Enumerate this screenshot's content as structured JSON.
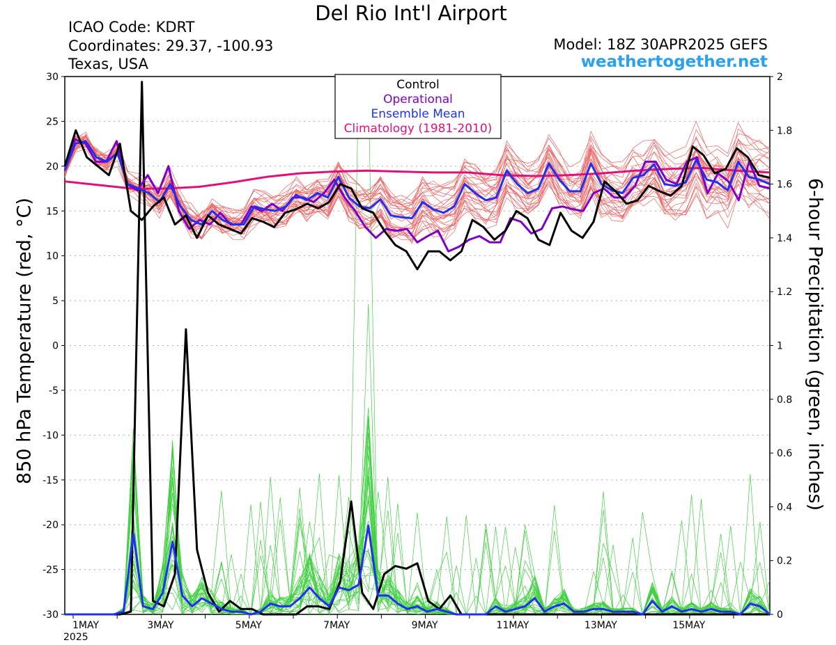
{
  "header": {
    "title": "Del Rio Int'l Airport",
    "icao": "ICAO Code: KDRT",
    "coordinates": "Coordinates: 29.37, -100.93",
    "location": "Texas, USA",
    "model": "Model: 18Z 30APR2025 GEFS",
    "brand": "weathertogether.net"
  },
  "colors": {
    "control": "#000000",
    "operational": "#8000c8",
    "ensemble_mean": "#2030f0",
    "climatology": "#e0107a",
    "members_temp": "#f06060",
    "members_precip": "#40d040",
    "brand": "#2aa0f0"
  },
  "chart_data": {
    "type": "line",
    "ylabel": "850 hPa Temperature (red, °C)",
    "y2label": "6-hour Precipitation (green, inches)",
    "ylim": [
      -30,
      30
    ],
    "y2lim": [
      0,
      2
    ],
    "yticks": [
      30,
      25,
      20,
      15,
      10,
      5,
      0,
      -5,
      -10,
      -15,
      -20,
      -25,
      -30
    ],
    "y2ticks": [
      "2",
      "1.8",
      "1.6",
      "1.4",
      "1.2",
      "1",
      "0.8",
      "0.6",
      "0.4",
      "0.2",
      "0"
    ],
    "xlim": [
      "2025-04-30T18Z",
      "2025-05-16T18Z"
    ],
    "xticks": [
      {
        "label": "1MAY",
        "sub": "2025",
        "day": 1
      },
      {
        "label": "3MAY",
        "day": 3
      },
      {
        "label": "5MAY",
        "day": 5
      },
      {
        "label": "7MAY",
        "day": 7
      },
      {
        "label": "9MAY",
        "day": 9
      },
      {
        "label": "11MAY",
        "day": 11
      },
      {
        "label": "13MAY",
        "day": 13
      },
      {
        "label": "15MAY",
        "day": 15
      }
    ],
    "grid": true,
    "legend": {
      "placement": "top-center",
      "entries": [
        "Control",
        "Operational",
        "Ensemble Mean",
        "Climatology (1981-2010)"
      ]
    },
    "step_hours": 6,
    "series": [
      {
        "name": "Control",
        "axis": "temperature",
        "values": [
          20,
          24,
          21,
          20,
          19,
          22.5,
          15,
          14,
          15.5,
          16.5,
          13.5,
          14.5,
          12,
          14.5,
          13.5,
          13,
          12.5,
          14.2,
          13.8,
          13.2,
          14.8,
          15.2,
          15.8,
          15.3,
          16,
          18,
          17.5,
          15.3,
          14.8,
          12.8,
          11.2,
          10.5,
          8.5,
          10.5,
          10.5,
          9.5,
          10.5,
          14,
          13.2,
          11.8,
          12.8,
          15,
          14.2,
          11.8,
          11.2,
          14.8,
          12.8,
          12,
          13.8,
          18.3,
          17.2,
          15.8,
          16.2,
          17.8,
          17.2,
          16.7,
          17.8,
          22.2,
          21.2,
          19.2,
          19.7,
          22,
          21,
          19,
          18.7
        ]
      },
      {
        "name": "Operational",
        "axis": "temperature",
        "values": [
          20,
          23,
          22.5,
          20.5,
          20.5,
          22.8,
          18,
          17.3,
          19,
          17,
          20,
          15,
          13,
          14,
          13.5,
          14.8,
          13.5,
          13.5,
          15.5,
          15,
          15.8,
          15,
          16.5,
          16.5,
          16,
          17,
          18.5,
          16.5,
          15,
          13.2,
          12,
          13,
          12.8,
          13,
          11.5,
          12.2,
          12.8,
          10.5,
          11,
          11.8,
          12.2,
          11.5,
          11.5,
          14.2,
          13.8,
          12.5,
          13,
          15.3,
          15.5,
          15.2,
          15,
          17,
          17.5,
          16.5,
          16.5,
          17.8,
          20.5,
          20.5,
          18.5,
          18,
          20.5,
          21,
          17,
          19.2,
          18.3,
          16.2,
          20.5,
          17.8,
          17.5
        ]
      },
      {
        "name": "Ensemble Mean",
        "axis": "temperature",
        "values": [
          19.5,
          22.5,
          22.8,
          21,
          20.5,
          21.5,
          18,
          17.5,
          17,
          16,
          18,
          15.5,
          14,
          13.5,
          15,
          14,
          13.5,
          13.5,
          15.5,
          15.2,
          15,
          15.5,
          16.8,
          16.2,
          17,
          16.5,
          18.8,
          16.5,
          15.5,
          15.3,
          16.3,
          14.5,
          14.3,
          14.2,
          16,
          15.2,
          14.8,
          15.5,
          18,
          17,
          16.2,
          16.5,
          19.5,
          18,
          17,
          17.5,
          20.3,
          18.5,
          17.2,
          17.2,
          20.3,
          18,
          17.3,
          17,
          18.7,
          19,
          20.2,
          18,
          17.8,
          18.2,
          20.7,
          18.5,
          18.2,
          17.3,
          20.5,
          18.8,
          18.5,
          18
        ]
      },
      {
        "name": "Climatology (1981-2010)",
        "axis": "temperature",
        "values": [
          18.3,
          17.9,
          17.5,
          17.5,
          17.7,
          18.2,
          18.8,
          19.2,
          19.4,
          19.5,
          19.4,
          19.3,
          19.3,
          19,
          18.9,
          19,
          19.2,
          19.5,
          19.7,
          19.8,
          19.5,
          19.3
        ]
      },
      {
        "name": "Control",
        "axis": "precip",
        "values": [
          0,
          0,
          0,
          0,
          0,
          0,
          0.01,
          1.98,
          0.05,
          0.03,
          0.15,
          1.06,
          0.24,
          0.08,
          0.01,
          0.05,
          0.02,
          0.02,
          0,
          0,
          0,
          0,
          0.03,
          0.03,
          0.02,
          0.12,
          0.42,
          0.08,
          0.02,
          0.15,
          0.18,
          0.17,
          0.19,
          0.05,
          0.02,
          0.07,
          0,
          0,
          0,
          0,
          0,
          0,
          0,
          0,
          0,
          0,
          0,
          0,
          0,
          0,
          0,
          0,
          0,
          0,
          0,
          0,
          0,
          0,
          0,
          0,
          0,
          0,
          0,
          0,
          0
        ]
      },
      {
        "name": "Ensemble Mean",
        "axis": "precip",
        "values": [
          0,
          0,
          0,
          0,
          0,
          0,
          0.01,
          0.3,
          0.03,
          0.02,
          0.08,
          0.27,
          0.07,
          0.03,
          0.06,
          0.04,
          0.02,
          0.01,
          0.01,
          0,
          0.01,
          0.04,
          0.03,
          0.03,
          0.06,
          0.1,
          0.06,
          0.03,
          0.1,
          0.09,
          0.11,
          0.33,
          0.07,
          0.07,
          0.04,
          0.02,
          0.03,
          0.01,
          0.02,
          0.01,
          0,
          0,
          0,
          0,
          0.03,
          0.01,
          0.02,
          0.03,
          0.06,
          0.01,
          0.03,
          0.04,
          0.01,
          0.01,
          0.02,
          0.02,
          0.01,
          0.01,
          0.01,
          0,
          0.05,
          0.01,
          0.03,
          0.01,
          0.02,
          0.01,
          0.02,
          0.01,
          0.01,
          0,
          0.04,
          0.03,
          0
        ]
      }
    ]
  }
}
